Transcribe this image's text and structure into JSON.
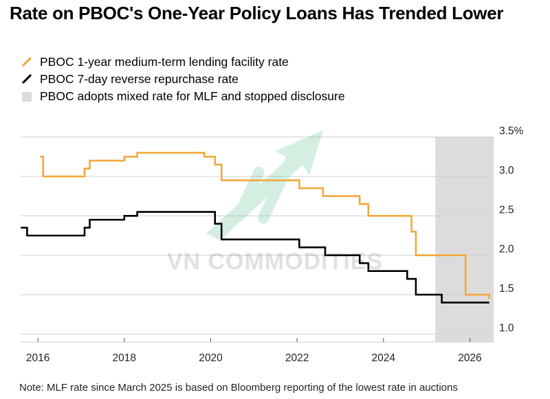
{
  "title": "Rate on PBOC's One-Year Policy Loans Has Trended Lower",
  "legend": [
    {
      "label": "PBOC 1-year medium-term lending facility rate",
      "color": "#f2a83a",
      "kind": "line"
    },
    {
      "label": "PBOC 7-day reverse repurchase rate",
      "color": "#000000",
      "kind": "line"
    },
    {
      "label": "PBOC adopts mixed rate for MLF and stopped disclosure",
      "color": "#dcdcdc",
      "kind": "box"
    }
  ],
  "note": "Note: MLF rate since March 2025 is based on Bloomberg reporting of the lowest rate in auctions",
  "watermark": "VN COMMODITIES",
  "chart_data": {
    "type": "line",
    "title": "Rate on PBOC's One-Year Policy Loans Has Trended Lower",
    "xlabel": "",
    "ylabel": "",
    "xlim": [
      2015.6,
      2026.55
    ],
    "ylim": [
      0.9,
      3.6
    ],
    "y_axis_position": "right",
    "grid": "horizontal",
    "x_ticks": [
      {
        "value": 2016,
        "label": "2016"
      },
      {
        "value": 2018,
        "label": "2018"
      },
      {
        "value": 2020,
        "label": "2020"
      },
      {
        "value": 2022,
        "label": "2022"
      },
      {
        "value": 2024,
        "label": "2024"
      },
      {
        "value": 2026,
        "label": "2026"
      }
    ],
    "y_ticks": [
      {
        "value": 1.0,
        "label": "1.0"
      },
      {
        "value": 1.5,
        "label": "1.5"
      },
      {
        "value": 2.0,
        "label": "2.0"
      },
      {
        "value": 2.5,
        "label": "2.5"
      },
      {
        "value": 3.0,
        "label": "3.0"
      },
      {
        "value": 3.5,
        "label": "3.5%"
      }
    ],
    "shaded_region": {
      "x_start": 2025.2,
      "x_end": 2026.55,
      "color": "#dcdcdc"
    },
    "series": [
      {
        "name": "PBOC 1-year medium-term lending facility rate",
        "color": "#f2a83a",
        "step": true,
        "points": [
          [
            2016.05,
            3.25
          ],
          [
            2016.12,
            3.0
          ],
          [
            2017.08,
            3.1
          ],
          [
            2017.2,
            3.2
          ],
          [
            2018.0,
            3.25
          ],
          [
            2018.3,
            3.3
          ],
          [
            2019.7,
            3.3
          ],
          [
            2019.85,
            3.25
          ],
          [
            2020.1,
            3.15
          ],
          [
            2020.25,
            2.95
          ],
          [
            2021.95,
            2.95
          ],
          [
            2022.05,
            2.85
          ],
          [
            2022.6,
            2.75
          ],
          [
            2023.45,
            2.65
          ],
          [
            2023.65,
            2.5
          ],
          [
            2024.55,
            2.5
          ],
          [
            2024.65,
            2.3
          ],
          [
            2024.75,
            2.0
          ],
          [
            2025.2,
            2.0
          ],
          [
            2025.9,
            1.5
          ],
          [
            2026.4,
            1.5
          ],
          [
            2026.45,
            1.45
          ]
        ]
      },
      {
        "name": "PBOC 7-day reverse repurchase rate",
        "color": "#000000",
        "step": true,
        "points": [
          [
            2015.6,
            2.35
          ],
          [
            2015.75,
            2.25
          ],
          [
            2017.08,
            2.35
          ],
          [
            2017.2,
            2.45
          ],
          [
            2018.0,
            2.5
          ],
          [
            2018.3,
            2.55
          ],
          [
            2019.8,
            2.55
          ],
          [
            2020.1,
            2.4
          ],
          [
            2020.25,
            2.2
          ],
          [
            2022.05,
            2.1
          ],
          [
            2022.65,
            2.0
          ],
          [
            2023.45,
            1.9
          ],
          [
            2023.65,
            1.8
          ],
          [
            2024.55,
            1.7
          ],
          [
            2024.75,
            1.5
          ],
          [
            2025.35,
            1.4
          ],
          [
            2026.45,
            1.4
          ]
        ]
      }
    ]
  }
}
